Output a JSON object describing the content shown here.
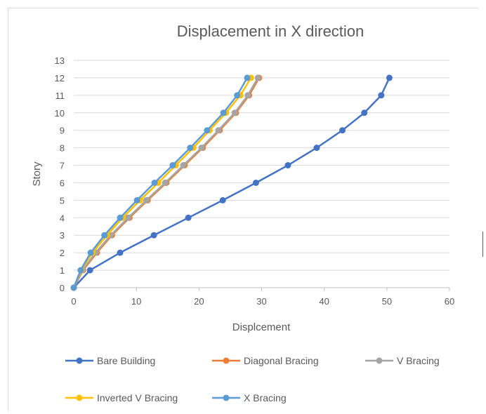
{
  "chart_data": {
    "type": "line",
    "title": "Displacement in X direction",
    "xlabel": "Displcement",
    "ylabel": "Story",
    "xlim": [
      0,
      60
    ],
    "ylim": [
      0,
      13
    ],
    "x_ticks": [
      0,
      10,
      20,
      30,
      40,
      50,
      60
    ],
    "y_ticks": [
      0,
      1,
      2,
      3,
      4,
      5,
      6,
      7,
      8,
      9,
      10,
      11,
      12,
      13
    ],
    "grid": "horizontal",
    "legend_position": "bottom",
    "series": [
      {
        "name": "Bare Building",
        "color": "#4472C4",
        "x": [
          0,
          2.6,
          7.4,
          12.8,
          18.3,
          23.8,
          29.1,
          34.2,
          38.8,
          42.9,
          46.4,
          49.1,
          50.4
        ],
        "y": [
          0,
          1,
          2,
          3,
          4,
          5,
          6,
          7,
          8,
          9,
          10,
          11,
          12
        ]
      },
      {
        "name": "Diagonal Bracing",
        "color": "#ED7D31",
        "x": [
          0,
          1.5,
          3.7,
          6.1,
          8.9,
          11.8,
          14.8,
          17.7,
          20.6,
          23.3,
          25.9,
          28.0,
          29.6
        ],
        "y": [
          0,
          1,
          2,
          3,
          4,
          5,
          6,
          7,
          8,
          9,
          10,
          11,
          12
        ]
      },
      {
        "name": "V Bracing",
        "color": "#A5A5A5",
        "x": [
          0,
          1.4,
          3.5,
          5.9,
          8.7,
          11.6,
          14.6,
          17.5,
          20.4,
          23.1,
          25.7,
          27.8,
          29.4
        ],
        "y": [
          0,
          1,
          2,
          3,
          4,
          5,
          6,
          7,
          8,
          9,
          10,
          11,
          12
        ]
      },
      {
        "name": "Inverted V Bracing",
        "color": "#FFC000",
        "x": [
          0,
          1.2,
          3.0,
          5.3,
          7.8,
          10.6,
          13.5,
          16.3,
          19.1,
          21.7,
          24.3,
          26.6,
          28.3
        ],
        "y": [
          0,
          1,
          2,
          3,
          4,
          5,
          6,
          7,
          8,
          9,
          10,
          11,
          12
        ]
      },
      {
        "name": "X Bracing",
        "color": "#5B9BD5",
        "x": [
          0,
          1.1,
          2.7,
          4.9,
          7.4,
          10.1,
          12.9,
          15.8,
          18.6,
          21.3,
          23.9,
          26.1,
          27.7
        ],
        "y": [
          0,
          1,
          2,
          3,
          4,
          5,
          6,
          7,
          8,
          9,
          10,
          11,
          12
        ]
      }
    ]
  },
  "colors": {
    "text": "#595959",
    "grid": "#D9D9D9",
    "axis": "#BFBFBF"
  }
}
